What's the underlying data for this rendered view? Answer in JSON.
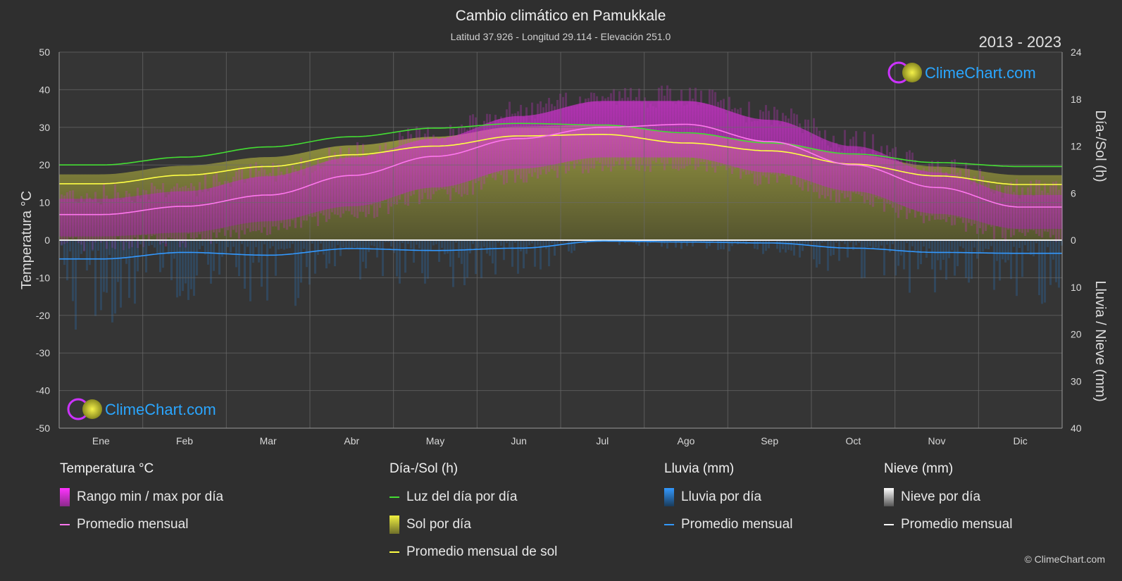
{
  "header": {
    "title": "Cambio climático en Pamukkale",
    "subtitle": "Latitud 37.926 - Longitud 29.114 - Elevación 251.0",
    "year_range": "2013 - 2023"
  },
  "logo_text": "ClimeChart.com",
  "copyright": "© ClimeChart.com",
  "chart_data": {
    "type": "area",
    "months": [
      "Ene",
      "Feb",
      "Mar",
      "Abr",
      "May",
      "Jun",
      "Jul",
      "Ago",
      "Sep",
      "Oct",
      "Nov",
      "Dic"
    ],
    "left_axis": {
      "label": "Temperatura °C",
      "range": [
        -50,
        50
      ],
      "ticks": [
        50,
        40,
        30,
        20,
        10,
        0,
        -10,
        -20,
        -30,
        -40,
        -50
      ]
    },
    "right_axis_top": {
      "label": "Día-/Sol (h)",
      "range": [
        0,
        24
      ],
      "ticks": [
        24,
        18,
        12,
        6,
        0
      ]
    },
    "right_axis_bottom": {
      "label": "Lluvia / Nieve (mm)",
      "range": [
        0,
        40
      ],
      "ticks": [
        0,
        10,
        20,
        30,
        40
      ]
    },
    "grid": true,
    "series": [
      {
        "name": "Luz del día por día",
        "unit": "h",
        "values": [
          9.6,
          10.6,
          11.9,
          13.2,
          14.3,
          14.9,
          14.7,
          13.7,
          12.4,
          11.0,
          9.9,
          9.4
        ]
      },
      {
        "name": "Promedio mensual de sol",
        "unit": "h",
        "values": [
          7.2,
          8.3,
          9.4,
          10.9,
          12.0,
          13.3,
          13.5,
          12.4,
          11.4,
          9.7,
          8.2,
          7.1
        ]
      },
      {
        "name": "Promedio mensual",
        "group": "Temperatura °C",
        "unit": "°C",
        "values": [
          6.8,
          9.0,
          12.0,
          17.2,
          22.3,
          27.0,
          30.0,
          30.8,
          26.2,
          20.0,
          14.0,
          8.8
        ]
      },
      {
        "name": "Temperatura máxima diaria",
        "unit": "°C",
        "values": [
          11,
          13,
          17,
          22,
          27,
          33,
          37,
          37,
          32,
          25,
          18,
          12
        ]
      },
      {
        "name": "Temperatura mínima diaria",
        "unit": "°C",
        "values": [
          1,
          2,
          5,
          9,
          14,
          19,
          22,
          22,
          18,
          13,
          7,
          3
        ]
      },
      {
        "name": "Promedio mensual",
        "group": "Lluvia (mm)",
        "unit": "mm",
        "values": [
          4.0,
          2.6,
          3.2,
          1.8,
          2.2,
          1.7,
          0.2,
          0.4,
          0.6,
          1.7,
          2.6,
          2.8
        ]
      }
    ]
  },
  "legend": {
    "temperature": {
      "title": "Temperatura °C",
      "range_label": "Rango min / max por día",
      "avg_label": "Promedio mensual",
      "range_color": "#d63adf",
      "avg_color": "#ff77ee"
    },
    "daylight": {
      "title": "Día-/Sol (h)",
      "daylight_label": "Luz del día por día",
      "sun_label": "Sol por día",
      "sun_avg_label": "Promedio mensual de sol",
      "daylight_color": "#44dd33",
      "sun_color": "#c8c830",
      "sun_avg_color": "#ffff44"
    },
    "rain": {
      "title": "Lluvia (mm)",
      "rain_label": "Lluvia por día",
      "avg_label": "Promedio mensual",
      "rain_color": "#2c86d8",
      "avg_color": "#3399ff"
    },
    "snow": {
      "title": "Nieve (mm)",
      "snow_label": "Nieve por día",
      "avg_label": "Promedio mensual",
      "snow_color": "#d0d0d0",
      "avg_color": "#ffffff"
    }
  }
}
